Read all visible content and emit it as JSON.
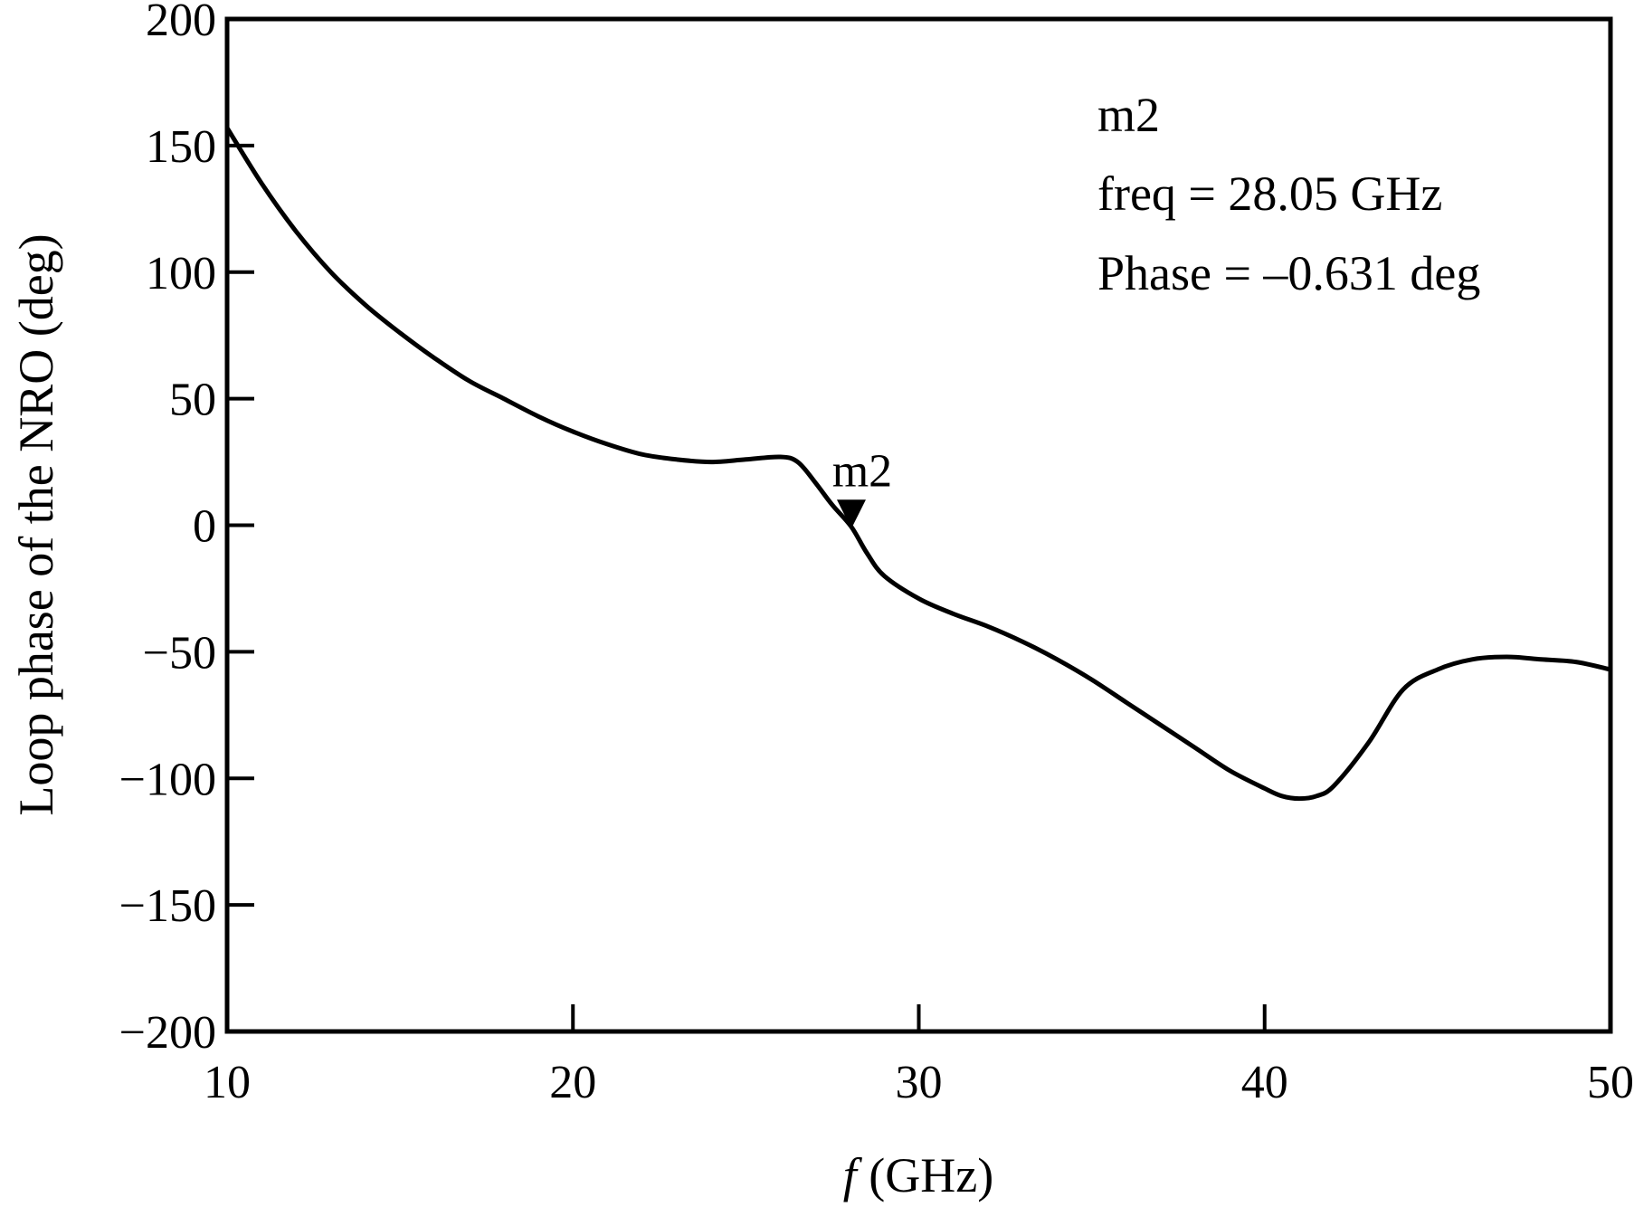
{
  "chart_data": {
    "type": "line",
    "xlabel_var": "f",
    "xlabel_unit": " (GHz)",
    "ylabel": "Loop phase of the NRO (deg)",
    "xlim": [
      10,
      50
    ],
    "ylim": [
      -200,
      200
    ],
    "xticks": [
      "10",
      "20",
      "30",
      "40",
      "50"
    ],
    "yticks": [
      "200",
      "150",
      "100",
      "50",
      "0",
      "−50",
      "−100",
      "−150",
      "−200"
    ],
    "grid": false,
    "series": [
      {
        "x": [
          10,
          11,
          12,
          13,
          14,
          15,
          16,
          17,
          18,
          19,
          20,
          21,
          22,
          23,
          24,
          25,
          26,
          26.5,
          27,
          27.5,
          28.05,
          28.5,
          29,
          30,
          31,
          32,
          33,
          34,
          35,
          36,
          37,
          38,
          39,
          40,
          40.5,
          41,
          41.5,
          42,
          43,
          44,
          45,
          46,
          47,
          48,
          49,
          50
        ],
        "y": [
          157,
          135,
          116,
          100,
          87,
          76,
          66,
          57,
          50,
          43,
          37,
          32,
          28,
          26,
          25,
          26,
          27,
          25,
          17,
          8,
          -0.631,
          -11,
          -20,
          -29,
          -35,
          -40,
          -46,
          -53,
          -61,
          -70,
          -79,
          -88,
          -97,
          -104,
          -107,
          -108,
          -107,
          -103,
          -86,
          -65,
          -57,
          -53,
          -52,
          -53,
          -54,
          -57
        ]
      }
    ],
    "marker": {
      "name": "m2",
      "x": 28.05,
      "y": -0.631
    },
    "annotation": {
      "lines": [
        "m2",
        "freq = 28.05 GHz",
        "Phase = –0.631 deg"
      ],
      "placement": "top-right"
    }
  }
}
